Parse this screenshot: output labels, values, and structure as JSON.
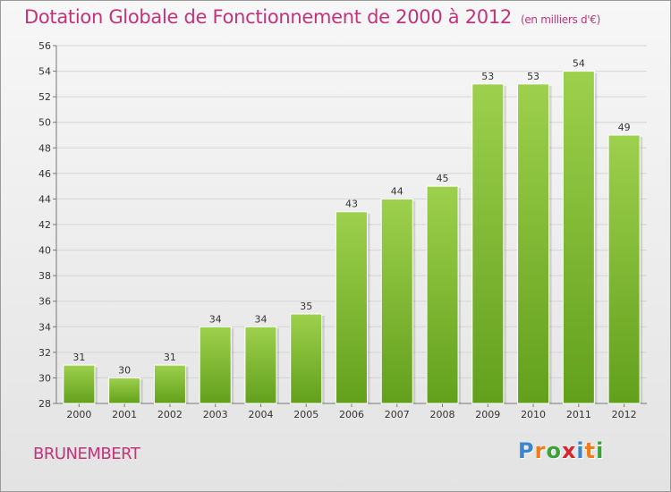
{
  "chart_data": {
    "type": "bar",
    "title": "Dotation Globale de Fonctionnement de 2000 à 2012",
    "unit_label": "(en milliers d'€)",
    "categories": [
      "2000",
      "2001",
      "2002",
      "2003",
      "2004",
      "2005",
      "2006",
      "2007",
      "2008",
      "2009",
      "2010",
      "2011",
      "2012"
    ],
    "values": [
      31,
      30,
      31,
      34,
      34,
      35,
      43,
      44,
      45,
      53,
      53,
      54,
      49
    ],
    "ylim": [
      28,
      56
    ],
    "y_ticks": [
      28,
      30,
      32,
      34,
      36,
      38,
      40,
      42,
      44,
      46,
      48,
      50,
      52,
      54,
      56
    ],
    "xlabel": "",
    "ylabel": "",
    "grid": "horizontal",
    "data_labels": true,
    "colors": {
      "bar_light": "#9dd04d",
      "bar_dark": "#62a01b",
      "title": "#c2347a",
      "grid": "#d4d4d4"
    }
  },
  "location": "BRUNEMBERT",
  "logo": {
    "letters": [
      "P",
      "r",
      "o",
      "x",
      "i",
      "t",
      "i"
    ],
    "colors": [
      "#3a86d0",
      "#f07d1a",
      "#3aa23a",
      "#d8262d",
      "#3a86d0",
      "#f07d1a",
      "#3aa23a"
    ]
  }
}
